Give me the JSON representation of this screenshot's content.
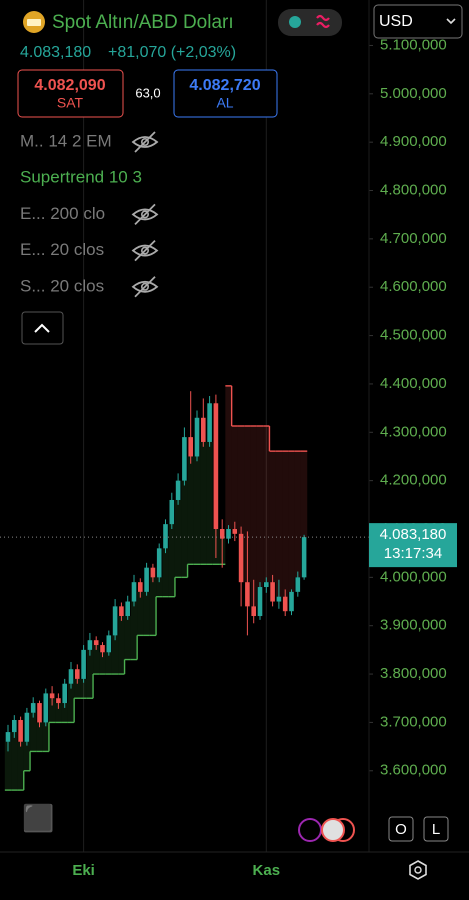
{
  "header": {
    "symbol": "Spot Altın/ABD Doları",
    "currency": "USD"
  },
  "quote": {
    "price": "4.083,180",
    "change": "+81,070 (+2,03%)"
  },
  "sell": {
    "price": "4.082,090",
    "label": "SAT"
  },
  "spread": "63,0",
  "buy": {
    "price": "4.082,720",
    "label": "AL"
  },
  "indicators": [
    "M.. 14 2 EM",
    "Supertrend 10 3",
    "E... 200 clo",
    "E... 20 clos",
    "S... 20 clos"
  ],
  "buttons": [
    "O",
    "L"
  ],
  "chart_data": {
    "type": "candlestick",
    "open": [
      3660,
      3680,
      3705,
      3660,
      3720,
      3740,
      3700,
      3760,
      3750,
      3740,
      3780,
      3810,
      3790,
      3850,
      3870,
      3860,
      3845,
      3880,
      3940,
      3920,
      3950,
      3990,
      3970,
      4020,
      4000,
      4060,
      4110,
      4160,
      4200,
      4290,
      4250,
      4330,
      4280,
      4360,
      4100,
      4080,
      4100,
      4090,
      3990,
      3940,
      3920,
      3980,
      3990,
      3950,
      3960,
      3930,
      3970,
      4000
    ],
    "high": [
      3695,
      3715,
      3712,
      3730,
      3752,
      3745,
      3770,
      3775,
      3760,
      3790,
      3825,
      3820,
      3860,
      3885,
      3878,
      3866,
      3890,
      3955,
      3948,
      3962,
      4005,
      3998,
      4030,
      4028,
      4070,
      4120,
      4175,
      4215,
      4310,
      4385,
      4345,
      4370,
      4375,
      4378,
      4120,
      4108,
      4115,
      4105,
      4095,
      3995,
      3990,
      4000,
      4005,
      3995,
      3975,
      3975,
      4012,
      4088
    ],
    "low": [
      3640,
      3668,
      3650,
      3652,
      3710,
      3690,
      3692,
      3735,
      3728,
      3730,
      3770,
      3780,
      3782,
      3838,
      3850,
      3835,
      3838,
      3870,
      3910,
      3912,
      3940,
      3958,
      3962,
      3990,
      3990,
      4050,
      4100,
      4150,
      4190,
      4235,
      4240,
      4270,
      4270,
      4040,
      4020,
      4070,
      4075,
      3940,
      3880,
      3905,
      3912,
      3968,
      3940,
      3935,
      3920,
      3922,
      3960,
      3995
    ],
    "close": [
      3680,
      3705,
      3660,
      3720,
      3740,
      3700,
      3760,
      3750,
      3740,
      3780,
      3810,
      3790,
      3850,
      3870,
      3860,
      3845,
      3880,
      3940,
      3920,
      3950,
      3990,
      3970,
      4020,
      4000,
      4060,
      4110,
      4160,
      4200,
      4290,
      4250,
      4330,
      4280,
      4360,
      4100,
      4080,
      4100,
      4090,
      3990,
      3940,
      3920,
      3980,
      3990,
      3950,
      3960,
      3930,
      3970,
      4000,
      4083.18
    ],
    "supertrend_up": [
      3560,
      3560,
      3560,
      3600,
      3640,
      3640,
      3640,
      3700,
      3700,
      3700,
      3700,
      3750,
      3750,
      3750,
      3800,
      3800,
      3800,
      3800,
      3800,
      3830,
      3830,
      3880,
      3880,
      3880,
      3960,
      3960,
      3960,
      4000,
      4000,
      4027,
      4027,
      4027,
      4027,
      4027,
      4027,
      null,
      null,
      null,
      null,
      null,
      null,
      null,
      null,
      null,
      null,
      null,
      null,
      null
    ],
    "supertrend_down": [
      null,
      null,
      null,
      null,
      null,
      null,
      null,
      null,
      null,
      null,
      null,
      null,
      null,
      null,
      null,
      null,
      null,
      null,
      null,
      null,
      null,
      null,
      null,
      null,
      null,
      null,
      null,
      null,
      null,
      null,
      null,
      null,
      null,
      null,
      null,
      4396,
      4313,
      4313,
      4313,
      4313,
      4313,
      4313,
      4261,
      4261,
      4261,
      4261,
      4261,
      4261
    ],
    "up_color": "#26a69a",
    "down_color": "#ef5350",
    "supertrend_up_color": "#4caf50",
    "supertrend_down_color": "#ef5350",
    "last_price": {
      "value": 4083.18,
      "label": "4.083,180"
    },
    "last_time": "13:17:34",
    "ylim": [
      3432,
      5194
    ],
    "yticks": [
      {
        "value": 3600,
        "label": "3.600,000"
      },
      {
        "value": 3700,
        "label": "3.700,000"
      },
      {
        "value": 3800,
        "label": "3.800,000"
      },
      {
        "value": 3900,
        "label": "3.900,000"
      },
      {
        "value": 4000,
        "label": "4.000,000"
      },
      {
        "value": 4100,
        "label": "4.100,000"
      },
      {
        "value": 4200,
        "label": "4.200,000"
      },
      {
        "value": 4300,
        "label": "4.300,000"
      },
      {
        "value": 4400,
        "label": "4.400,000"
      },
      {
        "value": 4500,
        "label": "4.500,000"
      },
      {
        "value": 4600,
        "label": "4.600,000"
      },
      {
        "value": 4700,
        "label": "4.700,000"
      },
      {
        "value": 4800,
        "label": "4.800,000"
      },
      {
        "value": 4900,
        "label": "4.900,000"
      },
      {
        "value": 5000,
        "label": "5.000,000"
      },
      {
        "value": 5100,
        "label": "5.100,000"
      }
    ],
    "xticks": [
      {
        "value": 12,
        "label": "Eki"
      },
      {
        "value": 41,
        "label": "Kas"
      }
    ]
  }
}
